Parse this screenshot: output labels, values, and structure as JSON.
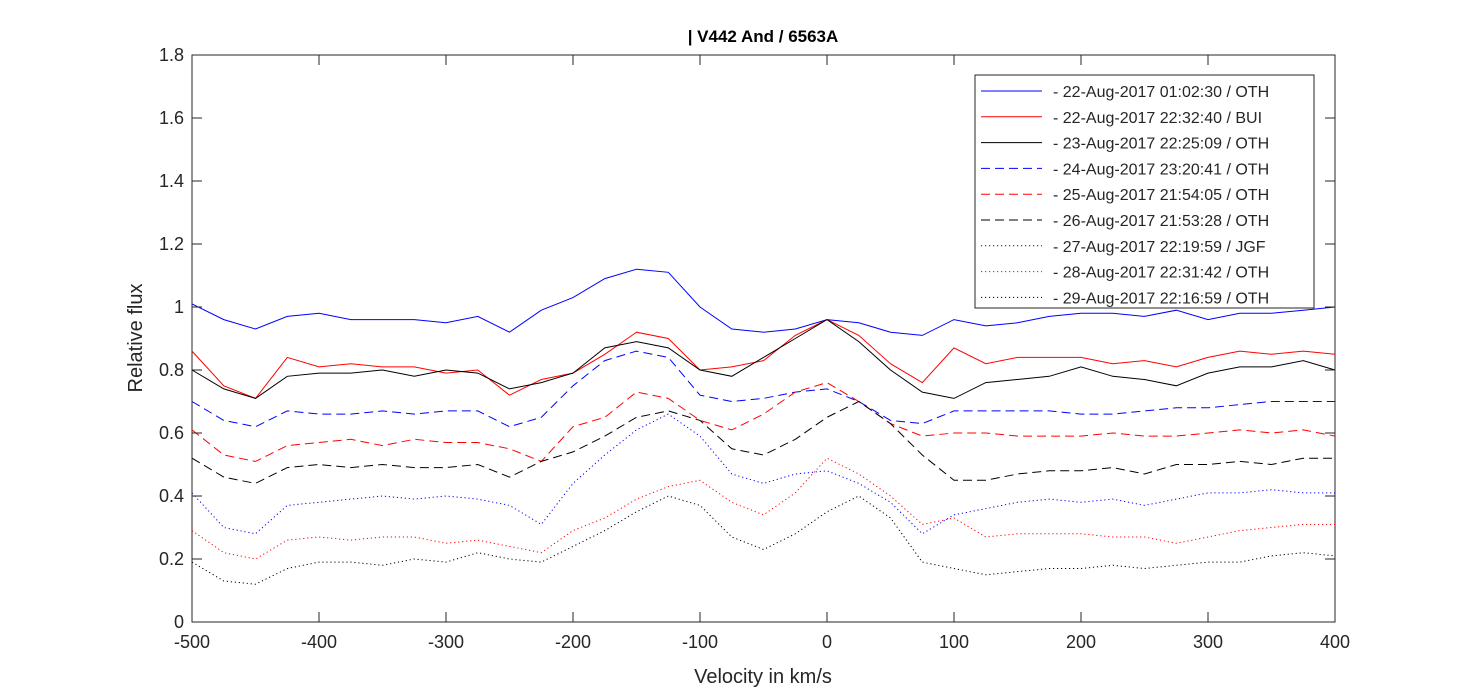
{
  "chart_data": {
    "type": "line",
    "title": "| V442 And / 6563A",
    "xlabel": "Velocity in km/s",
    "ylabel": "Relative flux",
    "xlim": [
      -500,
      400
    ],
    "ylim": [
      0,
      1.8
    ],
    "xticks": [
      "-500",
      "-400",
      "-300",
      "-200",
      "-100",
      "0",
      "100",
      "200",
      "300",
      "400"
    ],
    "xtick_values": [
      -500,
      -400,
      -300,
      -200,
      -100,
      0,
      100,
      200,
      300,
      400
    ],
    "yticks": [
      "0",
      "0.2",
      "0.4",
      "0.6",
      "0.8",
      "1",
      "1.2",
      "1.4",
      "1.6",
      "1.8"
    ],
    "ytick_values": [
      0,
      0.2,
      0.4,
      0.6,
      0.8,
      1,
      1.2,
      1.4,
      1.6,
      1.8
    ],
    "grid": false,
    "legend_position": "top-right",
    "x": [
      -500,
      -475,
      -450,
      -425,
      -400,
      -375,
      -350,
      -325,
      -300,
      -275,
      -250,
      -225,
      -200,
      -175,
      -150,
      -125,
      -100,
      -75,
      -50,
      -25,
      0,
      25,
      50,
      75,
      100,
      125,
      150,
      175,
      200,
      225,
      250,
      275,
      300,
      325,
      350,
      375,
      400
    ],
    "series": [
      {
        "name": "- 22-Aug-2017 01:02:30 / OTH",
        "color": "#0000ff",
        "style": "solid",
        "values": [
          1.01,
          0.96,
          0.93,
          0.97,
          0.98,
          0.96,
          0.96,
          0.96,
          0.95,
          0.97,
          0.92,
          0.99,
          1.03,
          1.09,
          1.12,
          1.11,
          1.0,
          0.93,
          0.92,
          0.93,
          0.96,
          0.95,
          0.92,
          0.91,
          0.96,
          0.94,
          0.95,
          0.97,
          0.98,
          0.98,
          0.97,
          0.99,
          0.96,
          0.98,
          0.98,
          0.99,
          1.0
        ]
      },
      {
        "name": "- 22-Aug-2017 22:32:40 / BUI",
        "color": "#ff0000",
        "style": "solid",
        "values": [
          0.86,
          0.75,
          0.71,
          0.84,
          0.81,
          0.82,
          0.81,
          0.81,
          0.79,
          0.8,
          0.72,
          0.77,
          0.79,
          0.85,
          0.92,
          0.9,
          0.8,
          0.81,
          0.83,
          0.91,
          0.96,
          0.91,
          0.82,
          0.76,
          0.87,
          0.82,
          0.84,
          0.84,
          0.84,
          0.82,
          0.83,
          0.81,
          0.84,
          0.86,
          0.85,
          0.86,
          0.85
        ]
      },
      {
        "name": "- 23-Aug-2017 22:25:09 / OTH",
        "color": "#000000",
        "style": "solid",
        "values": [
          0.8,
          0.74,
          0.71,
          0.78,
          0.79,
          0.79,
          0.8,
          0.78,
          0.8,
          0.79,
          0.74,
          0.76,
          0.79,
          0.87,
          0.89,
          0.87,
          0.8,
          0.78,
          0.84,
          0.9,
          0.96,
          0.89,
          0.8,
          0.73,
          0.71,
          0.76,
          0.77,
          0.78,
          0.81,
          0.78,
          0.77,
          0.75,
          0.79,
          0.81,
          0.81,
          0.83,
          0.8
        ]
      },
      {
        "name": "- 24-Aug-2017 23:20:41 / OTH",
        "color": "#0000ff",
        "style": "dashed",
        "values": [
          0.7,
          0.64,
          0.62,
          0.67,
          0.66,
          0.66,
          0.67,
          0.66,
          0.67,
          0.67,
          0.62,
          0.65,
          0.75,
          0.83,
          0.86,
          0.84,
          0.72,
          0.7,
          0.71,
          0.73,
          0.74,
          0.7,
          0.64,
          0.63,
          0.67,
          0.67,
          0.67,
          0.67,
          0.66,
          0.66,
          0.67,
          0.68,
          0.68,
          0.69,
          0.7,
          0.7,
          0.7
        ]
      },
      {
        "name": "- 25-Aug-2017 21:54:05 / OTH",
        "color": "#ff0000",
        "style": "dashed",
        "values": [
          0.61,
          0.53,
          0.51,
          0.56,
          0.57,
          0.58,
          0.56,
          0.58,
          0.57,
          0.57,
          0.55,
          0.51,
          0.62,
          0.65,
          0.73,
          0.71,
          0.64,
          0.61,
          0.66,
          0.73,
          0.76,
          0.7,
          0.63,
          0.59,
          0.6,
          0.6,
          0.59,
          0.59,
          0.59,
          0.6,
          0.59,
          0.59,
          0.6,
          0.61,
          0.6,
          0.61,
          0.59
        ]
      },
      {
        "name": "- 26-Aug-2017 21:53:28 / OTH",
        "color": "#000000",
        "style": "dashed",
        "values": [
          0.52,
          0.46,
          0.44,
          0.49,
          0.5,
          0.49,
          0.5,
          0.49,
          0.49,
          0.5,
          0.46,
          0.51,
          0.54,
          0.59,
          0.65,
          0.67,
          0.64,
          0.55,
          0.53,
          0.58,
          0.65,
          0.7,
          0.63,
          0.53,
          0.45,
          0.45,
          0.47,
          0.48,
          0.48,
          0.49,
          0.47,
          0.5,
          0.5,
          0.51,
          0.5,
          0.52,
          0.52
        ]
      },
      {
        "name": "- 27-Aug-2017 22:19:59 / JGF",
        "color": "#0000ff",
        "style": "dotted",
        "values": [
          0.41,
          0.3,
          0.28,
          0.37,
          0.38,
          0.39,
          0.4,
          0.39,
          0.4,
          0.39,
          0.37,
          0.31,
          0.44,
          0.53,
          0.61,
          0.66,
          0.59,
          0.47,
          0.44,
          0.47,
          0.48,
          0.44,
          0.38,
          0.28,
          0.34,
          0.36,
          0.38,
          0.39,
          0.38,
          0.39,
          0.37,
          0.39,
          0.41,
          0.41,
          0.42,
          0.41,
          0.41
        ]
      },
      {
        "name": "- 28-Aug-2017 22:31:42 / OTH",
        "color": "#ff0000",
        "style": "dotted",
        "values": [
          0.29,
          0.22,
          0.2,
          0.26,
          0.27,
          0.26,
          0.27,
          0.27,
          0.25,
          0.26,
          0.24,
          0.22,
          0.29,
          0.33,
          0.39,
          0.43,
          0.45,
          0.38,
          0.34,
          0.41,
          0.52,
          0.47,
          0.4,
          0.31,
          0.33,
          0.27,
          0.28,
          0.28,
          0.28,
          0.27,
          0.27,
          0.25,
          0.27,
          0.29,
          0.3,
          0.31,
          0.31
        ]
      },
      {
        "name": "- 29-Aug-2017 22:16:59 / OTH",
        "color": "#000000",
        "style": "dotted",
        "values": [
          0.19,
          0.13,
          0.12,
          0.17,
          0.19,
          0.19,
          0.18,
          0.2,
          0.19,
          0.22,
          0.2,
          0.19,
          0.24,
          0.29,
          0.35,
          0.4,
          0.37,
          0.27,
          0.23,
          0.28,
          0.35,
          0.4,
          0.33,
          0.19,
          0.17,
          0.15,
          0.16,
          0.17,
          0.17,
          0.18,
          0.17,
          0.18,
          0.19,
          0.19,
          0.21,
          0.22,
          0.21
        ]
      }
    ]
  }
}
